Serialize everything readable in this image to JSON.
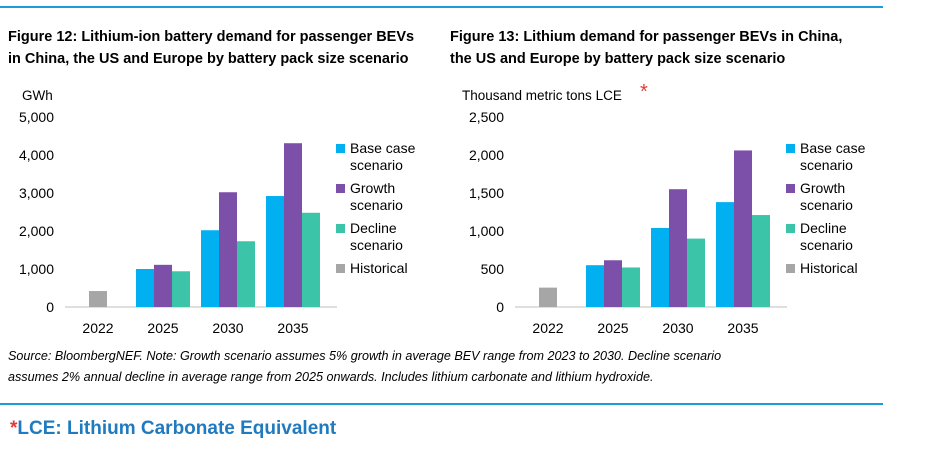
{
  "figure12": {
    "title_line1": "Figure 12: Lithium-ion battery demand for passenger BEVs",
    "title_line2": "in China, the US and Europe by battery pack size scenario"
  },
  "figure13": {
    "title_line1": "Figure 13: Lithium demand for passenger BEVs in China,",
    "title_line2": "the US and Europe by battery pack size scenario"
  },
  "source_line1": "Source: BloombergNEF. Note: Growth scenario assumes 5% growth in average BEV range from 2023 to 2030. Decline scenario",
  "source_line2": "assumes 2% annual decline in average range from 2025 onwards. Includes lithium carbonate and lithium hydroxide.",
  "footnote": {
    "star": "*",
    "text": "LCE: Lithium Carbonate Equivalent"
  },
  "colors": {
    "Base case scenario": "#00b0f0",
    "Growth scenario": "#7c4fa8",
    "Decline scenario": "#3cc4a8",
    "Historical": "#a6a6a6",
    "rule": "#1f9bd7",
    "annotation_star": "#e53935"
  },
  "chart_data": [
    {
      "type": "bar",
      "ylabel": "GWh",
      "ylabel_star": "",
      "ylim": [
        0,
        5000
      ],
      "yticks": [
        0,
        1000,
        2000,
        3000,
        4000,
        5000
      ],
      "ytick_labels": [
        "0",
        "1,000",
        "2,000",
        "3,000",
        "4,000",
        "5,000"
      ],
      "categories": [
        "2022",
        "2025",
        "2030",
        "2035"
      ],
      "series": [
        {
          "name": "Base case scenario",
          "legend_lines": [
            "Base case",
            "scenario"
          ],
          "values": [
            null,
            1000,
            2020,
            2920
          ]
        },
        {
          "name": "Growth scenario",
          "legend_lines": [
            "Growth",
            "scenario"
          ],
          "values": [
            null,
            1110,
            3020,
            4310
          ]
        },
        {
          "name": "Decline scenario",
          "legend_lines": [
            "Decline",
            "scenario"
          ],
          "values": [
            null,
            940,
            1730,
            2480
          ]
        },
        {
          "name": "Historical",
          "legend_lines": [
            "Historical"
          ],
          "values": [
            420,
            null,
            null,
            null
          ]
        }
      ],
      "legend_position": "right",
      "grid": false
    },
    {
      "type": "bar",
      "ylabel": "Thousand metric tons LCE",
      "ylabel_star": "*",
      "ylim": [
        0,
        2500
      ],
      "yticks": [
        0,
        500,
        1000,
        1500,
        2000,
        2500
      ],
      "ytick_labels": [
        "0",
        "500",
        "1,000",
        "1,500",
        "2,000",
        "2,500"
      ],
      "categories": [
        "2022",
        "2025",
        "2030",
        "2035"
      ],
      "series": [
        {
          "name": "Base case scenario",
          "legend_lines": [
            "Base case",
            "scenario"
          ],
          "values": [
            null,
            550,
            1040,
            1380
          ]
        },
        {
          "name": "Growth scenario",
          "legend_lines": [
            "Growth",
            "scenario"
          ],
          "values": [
            null,
            615,
            1550,
            2060
          ]
        },
        {
          "name": "Decline scenario",
          "legend_lines": [
            "Decline",
            "scenario"
          ],
          "values": [
            null,
            520,
            900,
            1210
          ]
        },
        {
          "name": "Historical",
          "legend_lines": [
            "Historical"
          ],
          "values": [
            255,
            null,
            null,
            null
          ]
        }
      ],
      "legend_position": "right",
      "grid": false
    }
  ]
}
